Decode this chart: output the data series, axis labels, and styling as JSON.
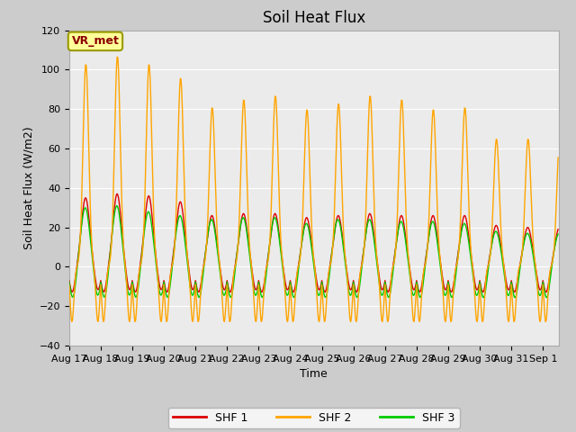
{
  "title": "Soil Heat Flux",
  "xlabel": "Time",
  "ylabel": "Soil Heat Flux (W/m2)",
  "ylim": [
    -40,
    120
  ],
  "start_date": "Aug 17",
  "xtick_labels": [
    "Aug 17",
    "Aug 18",
    "Aug 19",
    "Aug 20",
    "Aug 21",
    "Aug 22",
    "Aug 23",
    "Aug 24",
    "Aug 25",
    "Aug 26",
    "Aug 27",
    "Aug 28",
    "Aug 29",
    "Aug 30",
    "Aug 31",
    "Sep 1"
  ],
  "shf1_color": "#dd0000",
  "shf2_color": "#ffa500",
  "shf3_color": "#00cc00",
  "legend_labels": [
    "SHF 1",
    "SHF 2",
    "SHF 3"
  ],
  "annotation_text": "VR_met",
  "annotation_color": "#8b0000",
  "annotation_bg": "#ffff99",
  "plot_bg_color": "#ebebeb",
  "fig_bg_color": "#cccccc",
  "grid_color": "#ffffff",
  "linewidth": 1.0,
  "title_fontsize": 12,
  "label_fontsize": 9,
  "tick_fontsize": 8,
  "shf2_peak_heights": [
    103,
    107,
    103,
    96,
    81,
    85,
    87,
    80,
    83,
    87,
    85,
    80,
    81,
    65,
    65
  ],
  "shf1_peak_heights": [
    35,
    37,
    36,
    33,
    26,
    27,
    27,
    25,
    26,
    27,
    26,
    26,
    26,
    21,
    20
  ],
  "shf3_peak_heights": [
    30,
    31,
    28,
    26,
    24,
    25,
    25,
    22,
    24,
    24,
    23,
    23,
    22,
    18,
    17
  ]
}
